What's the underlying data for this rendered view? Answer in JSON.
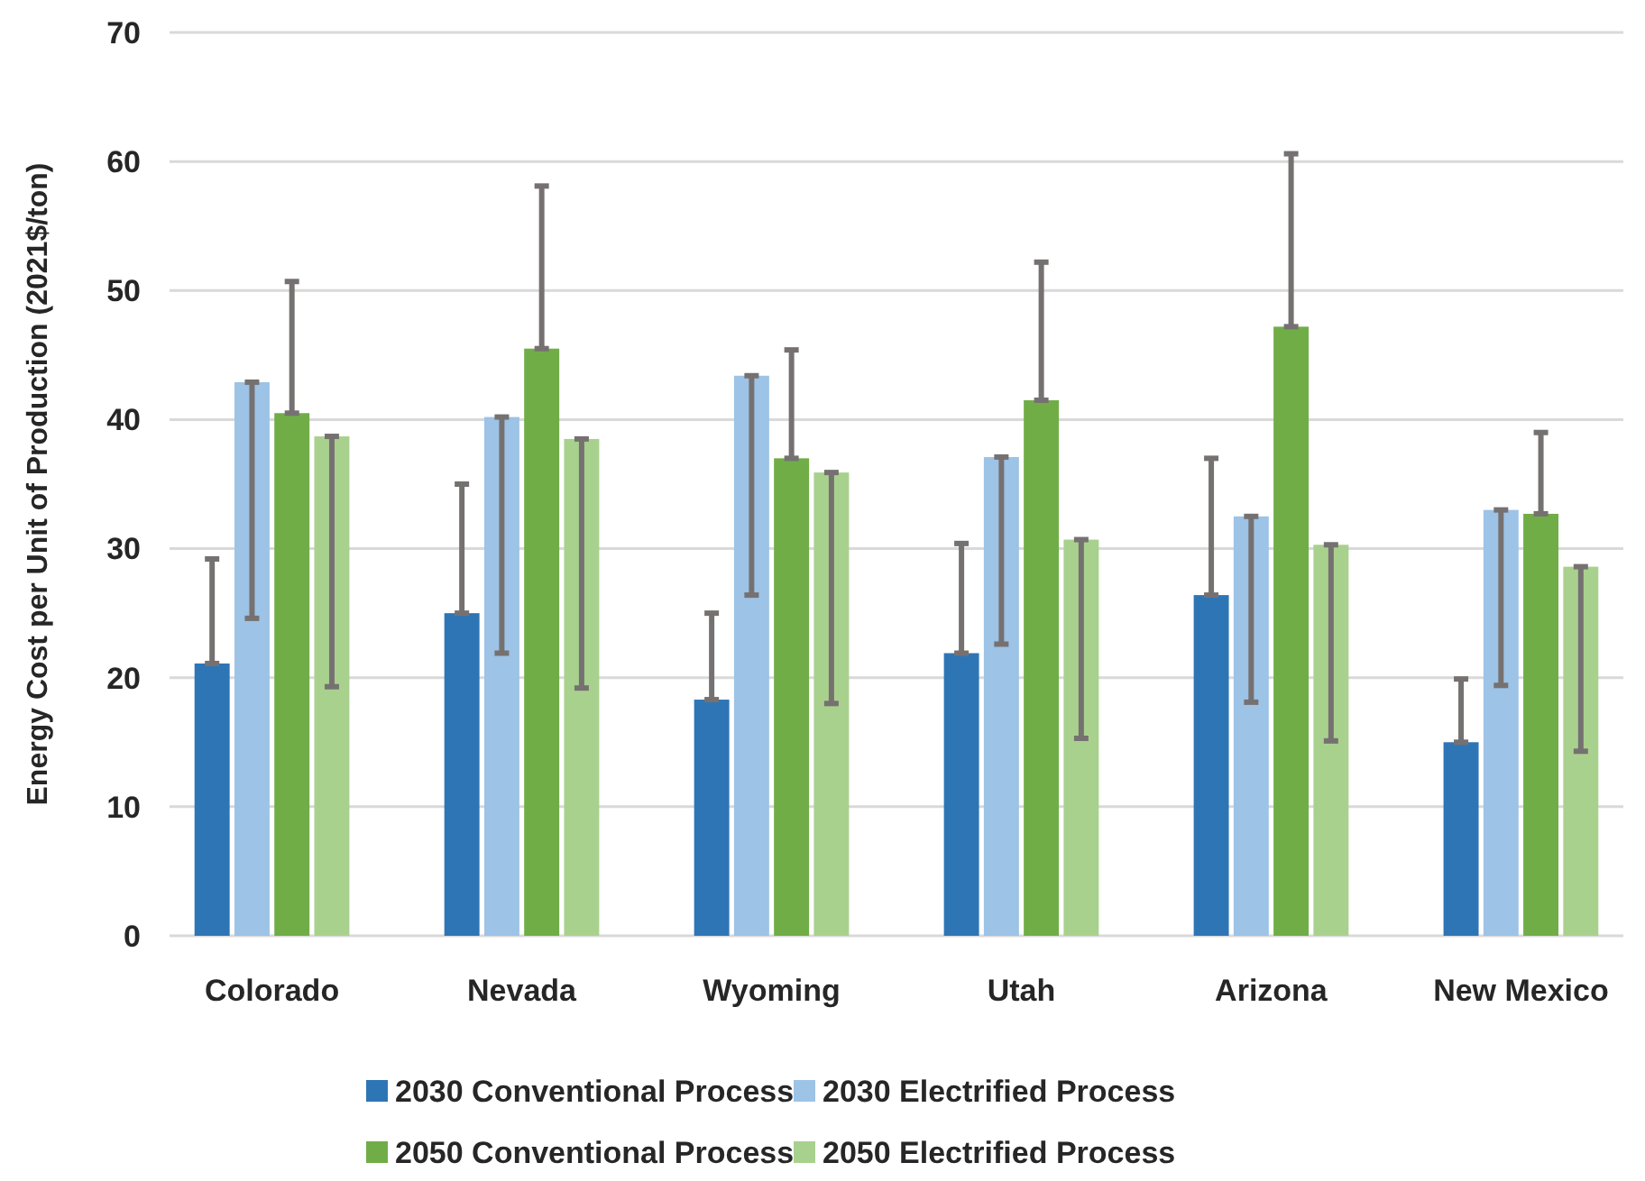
{
  "chart_data": {
    "type": "bar",
    "ylabel": "Energy Cost per Unit of Production (2021$/ton)",
    "categories": [
      "Colorado",
      "Nevada",
      "Wyoming",
      "Utah",
      "Arizona",
      "New Mexico"
    ],
    "series": [
      {
        "name": "2030 Conventional Process",
        "color": "#2e75b6",
        "values": [
          21.1,
          25.0,
          18.3,
          21.9,
          26.4,
          15.0
        ],
        "errors": [
          [
            21.1,
            29.2
          ],
          [
            25.0,
            35.0
          ],
          [
            18.3,
            25.0
          ],
          [
            21.9,
            30.4
          ],
          [
            26.4,
            37.0
          ],
          [
            15.0,
            19.9
          ]
        ]
      },
      {
        "name": "2030 Electrified Process",
        "color": "#9dc3e6",
        "values": [
          42.9,
          40.2,
          43.4,
          37.1,
          32.5,
          33.0
        ],
        "errors": [
          [
            24.6,
            42.9
          ],
          [
            21.9,
            40.2
          ],
          [
            26.4,
            43.4
          ],
          [
            22.6,
            37.1
          ],
          [
            18.1,
            32.5
          ],
          [
            19.4,
            33.0
          ]
        ]
      },
      {
        "name": "2050 Conventional Process",
        "color": "#70ad47",
        "values": [
          40.5,
          45.5,
          37.0,
          41.5,
          47.2,
          32.7
        ],
        "errors": [
          [
            40.5,
            50.7
          ],
          [
            45.5,
            58.1
          ],
          [
            37.0,
            45.4
          ],
          [
            41.5,
            52.2
          ],
          [
            47.2,
            60.6
          ],
          [
            32.7,
            39.0
          ]
        ]
      },
      {
        "name": "2050 Electrified Process",
        "color": "#a9d18e",
        "values": [
          38.7,
          38.5,
          35.9,
          30.7,
          30.3,
          28.6
        ],
        "errors": [
          [
            19.3,
            38.7
          ],
          [
            19.2,
            38.5
          ],
          [
            18.0,
            35.9
          ],
          [
            15.3,
            30.7
          ],
          [
            15.1,
            30.3
          ],
          [
            14.3,
            28.6
          ]
        ]
      }
    ],
    "ylim": [
      0,
      70
    ],
    "yticks": [
      0,
      10,
      20,
      30,
      40,
      50,
      60,
      70
    ],
    "grid": "y",
    "legend": "bottom"
  }
}
